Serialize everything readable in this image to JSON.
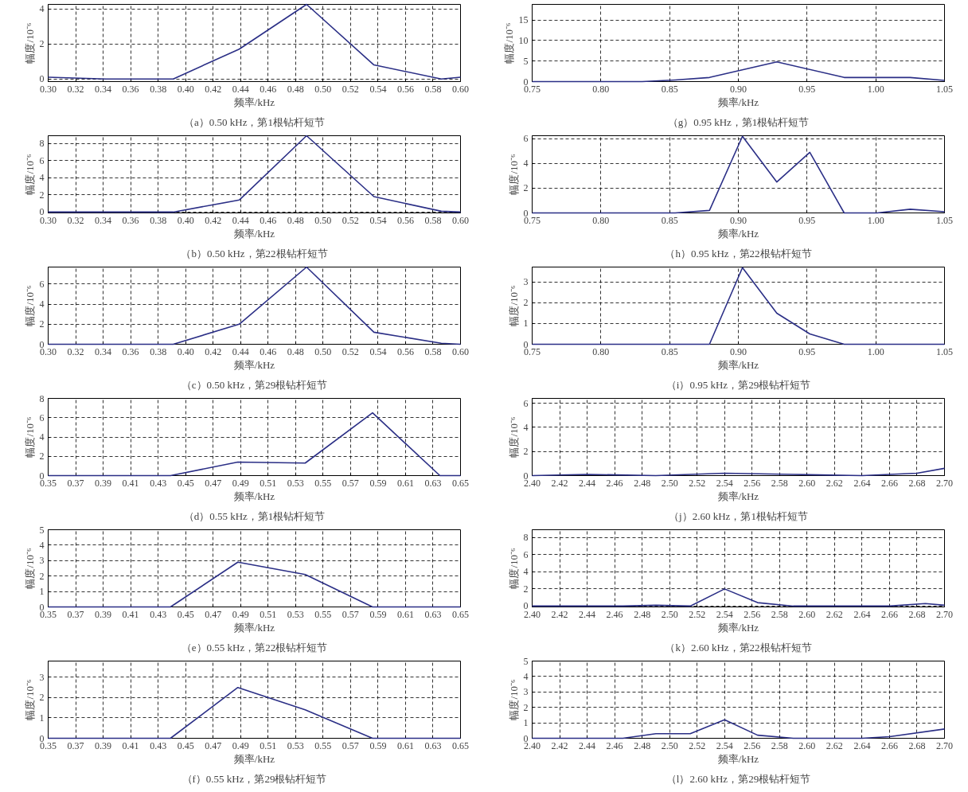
{
  "chart_data": [
    {
      "type": "line",
      "title": "（a）0.50 kHz，第1根钻杆短节",
      "xlabel": "频率/kHz",
      "ylabel": "幅度/10⁻⁶",
      "color": "#2b2f86",
      "grid": true,
      "x": [
        0.3,
        0.342,
        0.391,
        0.439,
        0.488,
        0.537,
        0.586,
        0.6
      ],
      "values": [
        0.1,
        0,
        0,
        1.7,
        4.25,
        0.8,
        0,
        0.1
      ],
      "xlim": [
        0.3,
        0.6
      ],
      "ylim": [
        -0.15,
        4.25
      ],
      "xticks": [
        {
          "value": 0.3,
          "label": "0.30"
        },
        0.32,
        0.34,
        0.36,
        0.38,
        {
          "value": 0.4,
          "label": "0.40"
        },
        0.42,
        0.44,
        0.46,
        0.48,
        {
          "value": 0.5,
          "label": "0.50"
        },
        0.52,
        0.54,
        0.56,
        0.58,
        {
          "value": 0.6,
          "label": "0.60"
        }
      ],
      "yticks": [
        0,
        2,
        4
      ]
    },
    {
      "type": "line",
      "title": "（b）0.50 kHz，第22根钻杆短节",
      "xlabel": "频率/kHz",
      "ylabel": "幅度/10⁻⁶",
      "color": "#2b2f86",
      "grid": true,
      "x": [
        0.3,
        0.342,
        0.391,
        0.439,
        0.488,
        0.537,
        0.586,
        0.6
      ],
      "values": [
        0,
        0,
        0,
        1.4,
        8.9,
        1.8,
        0.1,
        0
      ],
      "xlim": [
        0.3,
        0.6
      ],
      "ylim": [
        -0.1,
        8.9
      ],
      "xticks": [
        {
          "value": 0.3,
          "label": "0.30"
        },
        0.32,
        0.34,
        0.36,
        0.38,
        {
          "value": 0.4,
          "label": "0.40"
        },
        0.42,
        0.44,
        0.46,
        0.48,
        {
          "value": 0.5,
          "label": "0.50"
        },
        0.52,
        0.54,
        0.56,
        0.58,
        {
          "value": 0.6,
          "label": "0.60"
        }
      ],
      "yticks": [
        0,
        2,
        4,
        6,
        8
      ]
    },
    {
      "type": "line",
      "title": "（c）0.50 kHz，第29根钻杆短节",
      "xlabel": "频率/kHz",
      "ylabel": "幅度/10⁻⁶",
      "color": "#2b2f86",
      "grid": true,
      "x": [
        0.3,
        0.342,
        0.391,
        0.439,
        0.488,
        0.537,
        0.586,
        0.6
      ],
      "values": [
        0,
        0,
        0,
        2.0,
        7.7,
        1.2,
        0.1,
        0
      ],
      "xlim": [
        0.3,
        0.6
      ],
      "ylim": [
        0,
        7.7
      ],
      "xticks": [
        {
          "value": 0.3,
          "label": "0.30"
        },
        0.32,
        0.34,
        0.36,
        0.38,
        {
          "value": 0.4,
          "label": "0.40"
        },
        0.42,
        0.44,
        0.46,
        0.48,
        {
          "value": 0.5,
          "label": "0.50"
        },
        0.52,
        0.54,
        0.56,
        0.58,
        {
          "value": 0.6,
          "label": "0.60"
        }
      ],
      "yticks": [
        0,
        2,
        4,
        6
      ]
    },
    {
      "type": "line",
      "title": "（d）0.55 kHz，第1根钻杆短节",
      "xlabel": "频率/kHz",
      "ylabel": "幅度/10⁻⁶",
      "color": "#2b2f86",
      "grid": true,
      "x": [
        0.35,
        0.391,
        0.439,
        0.488,
        0.537,
        0.586,
        0.635,
        0.65
      ],
      "values": [
        0,
        0,
        0,
        1.4,
        1.3,
        6.5,
        0,
        0
      ],
      "xlim": [
        0.35,
        0.65
      ],
      "ylim": [
        0,
        8
      ],
      "xticks": [
        0.35,
        0.37,
        0.39,
        0.41,
        0.43,
        0.45,
        0.47,
        0.49,
        0.51,
        0.53,
        0.55,
        0.57,
        0.59,
        0.61,
        0.63,
        0.65
      ],
      "yticks": [
        0,
        2,
        4,
        6,
        8
      ]
    },
    {
      "type": "line",
      "title": "（e）0.55 kHz，第22根钻杆短节",
      "xlabel": "频率/kHz",
      "ylabel": "幅度/10⁻⁶",
      "color": "#2b2f86",
      "grid": true,
      "x": [
        0.35,
        0.391,
        0.439,
        0.488,
        0.537,
        0.586,
        0.635,
        0.65
      ],
      "values": [
        0,
        0,
        0,
        2.9,
        2.1,
        0,
        0,
        0
      ],
      "xlim": [
        0.35,
        0.65
      ],
      "ylim": [
        0,
        5
      ],
      "xticks": [
        0.35,
        0.37,
        0.39,
        0.41,
        0.43,
        0.45,
        0.47,
        0.49,
        0.51,
        0.53,
        0.55,
        0.57,
        0.59,
        0.61,
        0.63,
        0.65
      ],
      "yticks": [
        0,
        1,
        2,
        3,
        4,
        5
      ]
    },
    {
      "type": "line",
      "title": "（f）0.55 kHz，第29根钻杆短节",
      "xlabel": "频率/kHz",
      "ylabel": "幅度/10⁻⁶",
      "color": "#2b2f86",
      "grid": true,
      "x": [
        0.35,
        0.391,
        0.439,
        0.488,
        0.537,
        0.586,
        0.635,
        0.65
      ],
      "values": [
        0,
        0,
        0,
        2.5,
        1.4,
        0,
        0,
        0
      ],
      "xlim": [
        0.35,
        0.65
      ],
      "ylim": [
        0,
        3.8
      ],
      "xticks": [
        0.35,
        0.37,
        0.39,
        0.41,
        0.43,
        0.45,
        0.47,
        0.49,
        0.51,
        0.53,
        0.55,
        0.57,
        0.59,
        0.61,
        0.63,
        0.65
      ],
      "yticks": [
        0,
        1,
        2,
        3
      ]
    },
    {
      "type": "line",
      "title": "（g）0.95 kHz，第1根钻杆短节",
      "xlabel": "频率/kHz",
      "ylabel": "幅度/10⁻⁶",
      "color": "#2b2f86",
      "grid": true,
      "x": [
        0.75,
        0.83,
        0.854,
        0.879,
        0.928,
        0.977,
        1.025,
        1.05
      ],
      "values": [
        0,
        0,
        0.4,
        1.0,
        4.8,
        1.0,
        1.0,
        0.3
      ],
      "xlim": [
        0.75,
        1.05
      ],
      "ylim": [
        0,
        18.8
      ],
      "xticks": [
        0.75,
        {
          "value": 0.8,
          "label": "0.80"
        },
        0.85,
        {
          "value": 0.9,
          "label": "0.90"
        },
        0.95,
        {
          "value": 1,
          "label": "1.00"
        },
        1.05
      ],
      "yticks": [
        0,
        5,
        10,
        15
      ]
    },
    {
      "type": "line",
      "title": "（h）0.95 kHz，第22根钻杆短节",
      "xlabel": "频率/kHz",
      "ylabel": "幅度/10⁻⁶",
      "color": "#2b2f86",
      "grid": true,
      "x": [
        0.75,
        0.854,
        0.879,
        0.903,
        0.928,
        0.952,
        0.977,
        1.001,
        1.025,
        1.05
      ],
      "values": [
        0,
        0,
        0.2,
        6.2,
        2.5,
        4.9,
        0,
        0,
        0.3,
        0.1
      ],
      "xlim": [
        0.75,
        1.05
      ],
      "ylim": [
        0,
        6.25
      ],
      "xticks": [
        0.75,
        {
          "value": 0.8,
          "label": "0.80"
        },
        0.85,
        {
          "value": 0.9,
          "label": "0.90"
        },
        0.95,
        {
          "value": 1,
          "label": "1.00"
        },
        1.05
      ],
      "yticks": [
        0,
        2,
        4,
        6
      ]
    },
    {
      "type": "line",
      "title": "（i）0.95 kHz，第29根钻杆短节",
      "xlabel": "频率/kHz",
      "ylabel": "幅度/10⁻⁶",
      "color": "#2b2f86",
      "grid": true,
      "x": [
        0.75,
        0.879,
        0.903,
        0.928,
        0.952,
        0.977,
        1.05
      ],
      "values": [
        0,
        0,
        3.7,
        1.5,
        0.5,
        0,
        0
      ],
      "xlim": [
        0.75,
        1.05
      ],
      "ylim": [
        0,
        3.73
      ],
      "xticks": [
        0.75,
        {
          "value": 0.8,
          "label": "0.80"
        },
        0.85,
        {
          "value": 0.9,
          "label": "0.90"
        },
        0.95,
        {
          "value": 1,
          "label": "1.00"
        },
        1.05
      ],
      "yticks": [
        0,
        1,
        2,
        3
      ]
    },
    {
      "type": "line",
      "title": "（j）2.60 kHz，第1根钻杆短节",
      "xlabel": "频率/kHz",
      "ylabel": "幅度/10⁻⁶",
      "color": "#2b2f86",
      "grid": true,
      "x": [
        2.4,
        2.44,
        2.49,
        2.54,
        2.59,
        2.64,
        2.68,
        2.7
      ],
      "values": [
        0,
        0.1,
        0,
        0.2,
        0.1,
        0,
        0.2,
        0.6
      ],
      "xlim": [
        2.4,
        2.7
      ],
      "ylim": [
        0,
        6.4
      ],
      "xticks": [
        {
          "value": 2.4,
          "label": "2.40"
        },
        2.42,
        2.44,
        2.46,
        2.48,
        {
          "value": 2.5,
          "label": "2.50"
        },
        2.52,
        2.54,
        2.56,
        2.58,
        {
          "value": 2.6,
          "label": "2.60"
        },
        2.62,
        2.64,
        2.66,
        2.68,
        {
          "value": 2.7,
          "label": "2.70"
        }
      ],
      "yticks": [
        0,
        2,
        4,
        6
      ]
    },
    {
      "type": "line",
      "title": "（k）2.60 kHz，第22根钻杆短节",
      "xlabel": "频率/kHz",
      "ylabel": "幅度/10⁻⁶",
      "color": "#2b2f86",
      "grid": true,
      "x": [
        2.4,
        2.466,
        2.49,
        2.515,
        2.54,
        2.564,
        2.59,
        2.66,
        2.686,
        2.7
      ],
      "values": [
        0,
        0,
        0.1,
        0,
        2.0,
        0.4,
        0,
        0,
        0.3,
        0.1
      ],
      "xlim": [
        2.4,
        2.7
      ],
      "ylim": [
        -0.1,
        8.9
      ],
      "xticks": [
        {
          "value": 2.4,
          "label": "2.40"
        },
        2.42,
        2.44,
        2.46,
        2.48,
        {
          "value": 2.5,
          "label": "2.50"
        },
        2.52,
        2.54,
        2.56,
        2.58,
        {
          "value": 2.6,
          "label": "2.60"
        },
        2.62,
        2.64,
        2.66,
        2.68,
        {
          "value": 2.7,
          "label": "2.70"
        }
      ],
      "yticks": [
        0,
        2,
        4,
        6,
        8
      ]
    },
    {
      "type": "line",
      "title": "（l）2.60 kHz，第29根钻杆短节",
      "xlabel": "频率/kHz",
      "ylabel": "幅度/10⁻⁶",
      "color": "#2b2f86",
      "grid": true,
      "x": [
        2.4,
        2.466,
        2.49,
        2.515,
        2.54,
        2.564,
        2.59,
        2.64,
        2.66,
        2.7
      ],
      "values": [
        0,
        0,
        0.3,
        0.3,
        1.2,
        0.2,
        0,
        0,
        0.1,
        0.6
      ],
      "xlim": [
        2.4,
        2.7
      ],
      "ylim": [
        0,
        5
      ],
      "xticks": [
        {
          "value": 2.4,
          "label": "2.40"
        },
        2.42,
        2.44,
        2.46,
        2.48,
        {
          "value": 2.5,
          "label": "2.50"
        },
        2.52,
        2.54,
        2.56,
        2.58,
        {
          "value": 2.6,
          "label": "2.60"
        },
        2.62,
        2.64,
        2.66,
        2.68,
        {
          "value": 2.7,
          "label": "2.70"
        }
      ],
      "yticks": [
        0,
        1,
        2,
        3,
        4,
        5
      ]
    }
  ]
}
